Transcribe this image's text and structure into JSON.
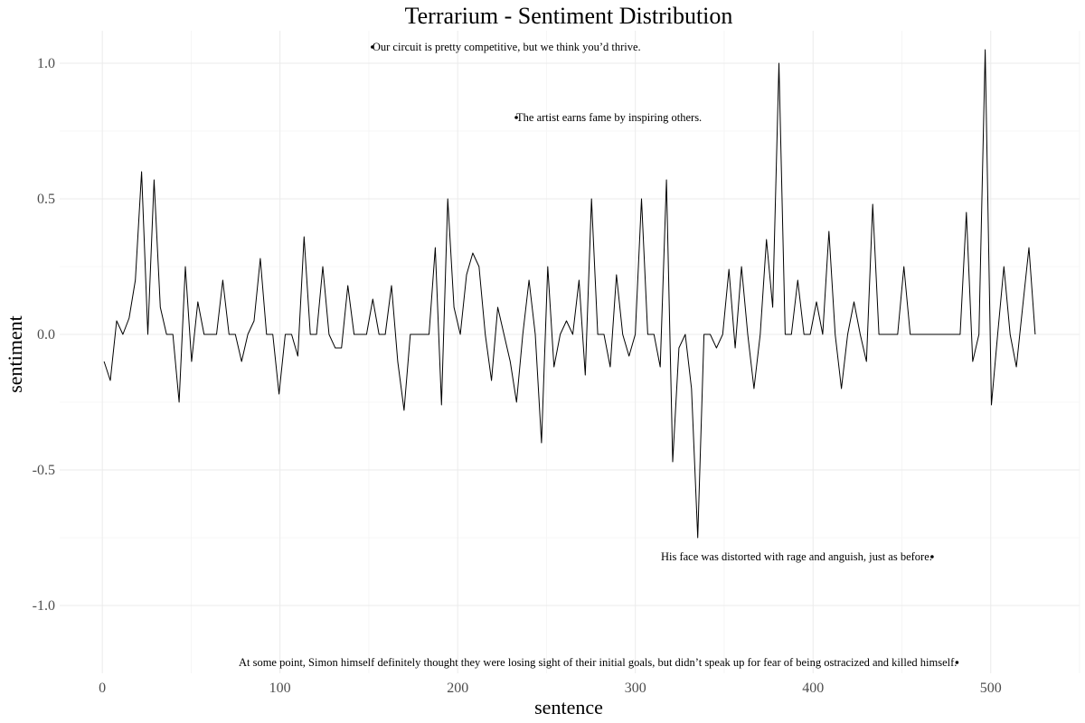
{
  "chart_data": {
    "type": "line",
    "title": "Terrarium - Sentiment Distribution",
    "xlabel": "sentence",
    "ylabel": "sentiment",
    "xlim": [
      -24,
      550
    ],
    "ylim": [
      -1.25,
      1.12
    ],
    "x_ticks": [
      0,
      100,
      200,
      300,
      400,
      500
    ],
    "y_ticks": [
      1.0,
      0.5,
      0.0,
      -0.5,
      -1.0
    ],
    "x_tick_labels": [
      "0",
      "100",
      "200",
      "300",
      "400",
      "500"
    ],
    "y_tick_labels": [
      "1.0",
      "0.5",
      "0.0",
      "-0.5",
      "-1.0"
    ],
    "grid": true,
    "series": [
      {
        "line_color": "#000000",
        "x_start": 1,
        "values": [
          -0.1,
          -0.17,
          0.05,
          0.0,
          0.06,
          0.2,
          0.6,
          0.0,
          0.57,
          0.1,
          0.0,
          0.0,
          -0.25,
          0.25,
          -0.1,
          0.12,
          0.0,
          0.0,
          0.0,
          0.2,
          0.0,
          0.0,
          -0.1,
          0.0,
          0.05,
          0.28,
          0.0,
          0.0,
          -0.22,
          0.0,
          0.0,
          -0.08,
          0.36,
          0.0,
          0.0,
          0.25,
          0.0,
          -0.05,
          -0.05,
          0.18,
          0.0,
          0.0,
          0.0,
          0.13,
          0.0,
          0.0,
          0.18,
          -0.1,
          -0.28,
          0.0,
          0.0,
          0.0,
          0.0,
          0.32,
          -0.26,
          0.5,
          0.1,
          0.0,
          0.22,
          0.3,
          0.25,
          0.0,
          -0.17,
          0.1,
          0.0,
          -0.1,
          -0.25,
          0.0,
          0.2,
          0.0,
          -0.4,
          0.25,
          -0.12,
          0.0,
          0.05,
          0.0,
          0.2,
          -0.15,
          0.5,
          0.0,
          0.0,
          -0.12,
          0.22,
          0.0,
          -0.08,
          0.0,
          0.5,
          0.0,
          0.0,
          -0.12,
          0.57,
          -0.47,
          -0.05,
          0.0,
          -0.2,
          -0.75,
          0.0,
          0.0,
          -0.05,
          0.0,
          0.24,
          -0.05,
          0.25,
          0.0,
          -0.2,
          0.0,
          0.35,
          0.1,
          1.0,
          0.0,
          0.0,
          0.2,
          0.0,
          0.0,
          0.12,
          0.0,
          0.38,
          0.0,
          -0.2,
          0.0,
          0.12,
          0.0,
          -0.1,
          0.48,
          0.0,
          0.0,
          0.0,
          0.0,
          0.25,
          0.0,
          0.0,
          0.0,
          0.0,
          0.0,
          0.0,
          0.0,
          0.0,
          0.0,
          0.45,
          -0.1,
          0.0,
          1.05,
          -0.26,
          0.0,
          0.25,
          0.0,
          -0.12,
          0.1,
          0.32,
          0.0
        ]
      }
    ],
    "annotations": [
      {
        "x": 152,
        "y": 1.06,
        "text": "Our circuit is pretty competitive, but we think you’d thrive.",
        "anchor": "start"
      },
      {
        "x": 233,
        "y": 0.8,
        "text": "The artist earns fame by inspiring others.",
        "anchor": "start"
      },
      {
        "x": 467,
        "y": -0.82,
        "text": "His face was distorted with rage and anguish, just as before.",
        "anchor": "end"
      },
      {
        "x": 481,
        "y": -1.21,
        "text": "At some point, Simon himself definitely thought they were losing sight of their initial goals, but didn’t speak up for fear of being ostracized and killed himself.",
        "anchor": "end"
      }
    ]
  }
}
